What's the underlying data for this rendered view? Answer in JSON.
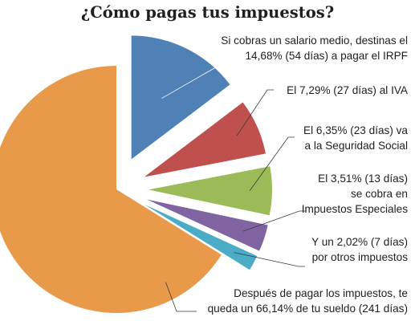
{
  "chart_data": {
    "type": "pie",
    "title": "¿Cómo pagas tus impuestos?",
    "slices": [
      {
        "value": 14.68,
        "color": "#4f81b7",
        "label_lines": [
          "Si cobras un salario medio, destinas el",
          "14,68% (54 días) a pagar el IRPF"
        ]
      },
      {
        "value": 7.29,
        "color": "#c0504d",
        "label_lines": [
          "El 7,29% (27 días) al IVA"
        ]
      },
      {
        "value": 6.35,
        "color": "#9bbb59",
        "label_lines": [
          "El 6,35% (23 días) va",
          "a la Seguridad Social"
        ]
      },
      {
        "value": 3.51,
        "color": "#8064a2",
        "label_lines": [
          "El 3,51% (13 días)",
          "se cobra en",
          "Impuestos Especiales"
        ]
      },
      {
        "value": 2.02,
        "color": "#4bacc6",
        "label_lines": [
          "Y un 2,02% (7 días)",
          "por otros impuestos"
        ]
      },
      {
        "value": 66.14,
        "color": "#e8994a",
        "label_lines": [
          "Después de pagar los impuestos, te",
          "queda un 66,14% de tu sueldo (241 días)"
        ]
      }
    ]
  }
}
